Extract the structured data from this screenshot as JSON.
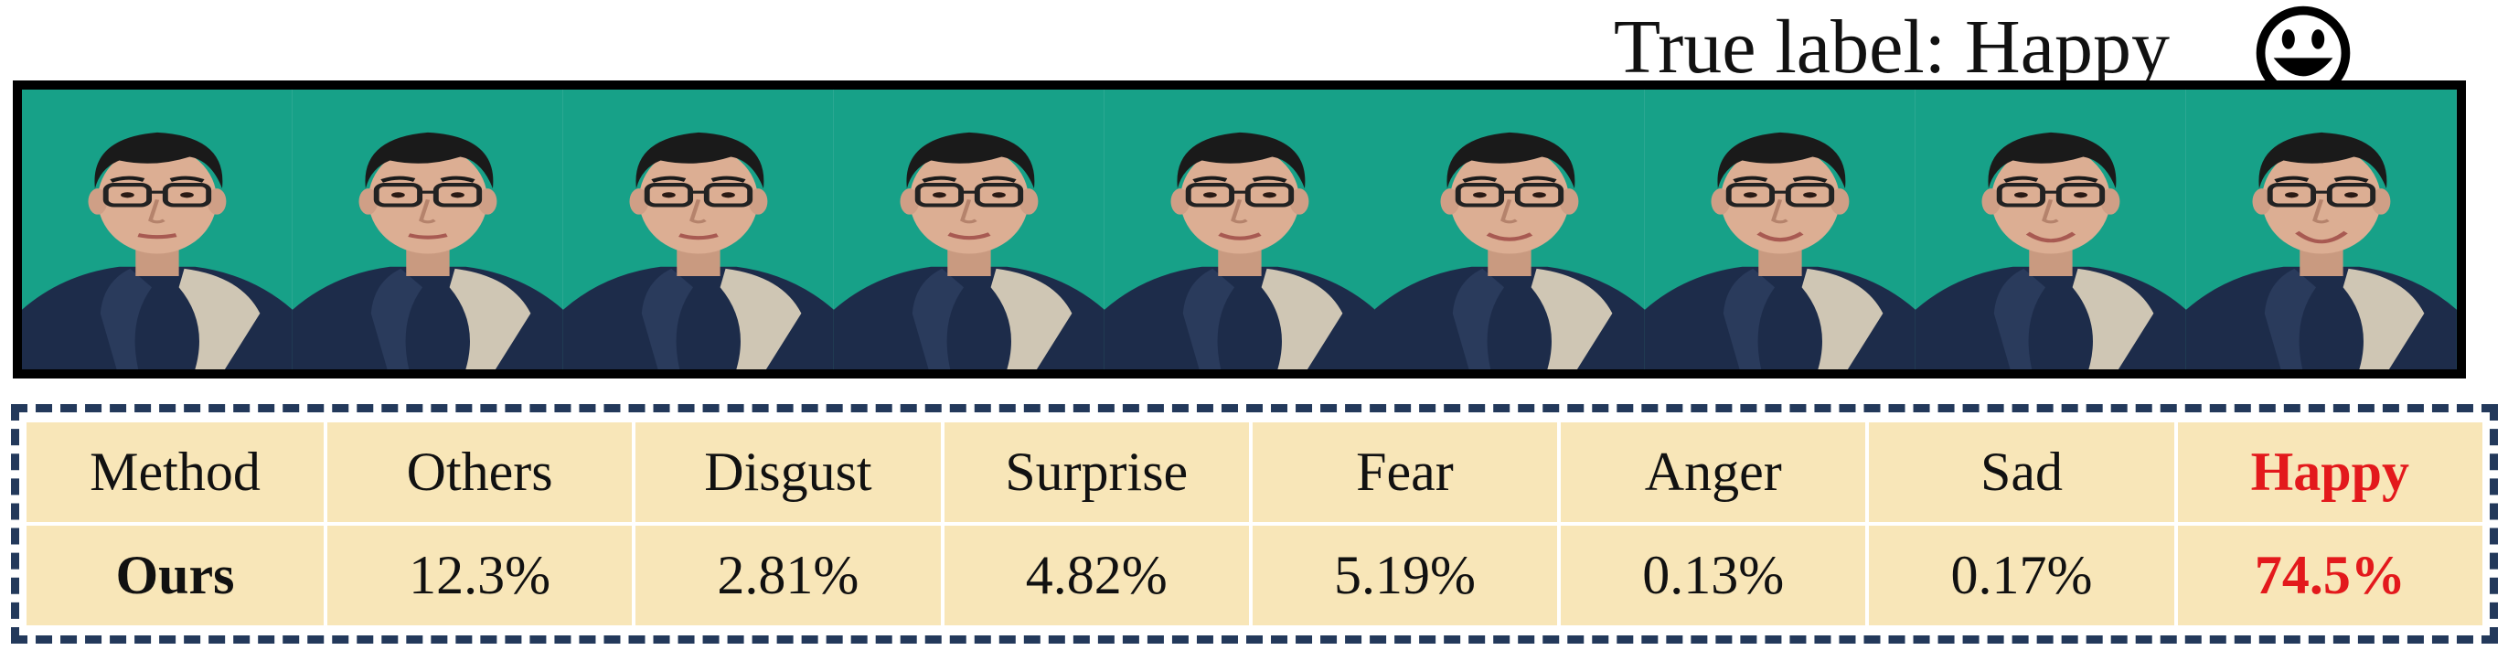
{
  "header": {
    "true_label": "True label: Happy",
    "emoji_icon": "smiley-face-icon"
  },
  "frames": {
    "count": 9,
    "background_color": "#1aa88f"
  },
  "table": {
    "header": [
      "Method",
      "Others",
      "Disgust",
      "Surprise",
      "Fear",
      "Anger",
      "Sad",
      "Happy"
    ],
    "rows": [
      [
        "Ours",
        "12.3%",
        "2.81%",
        "4.82%",
        "5.19%",
        "0.13%",
        "0.17%",
        "74.5%"
      ]
    ],
    "cell_color": "#f8e6b8",
    "highlight_color": "#e3191c",
    "border_color": "#23395b"
  }
}
